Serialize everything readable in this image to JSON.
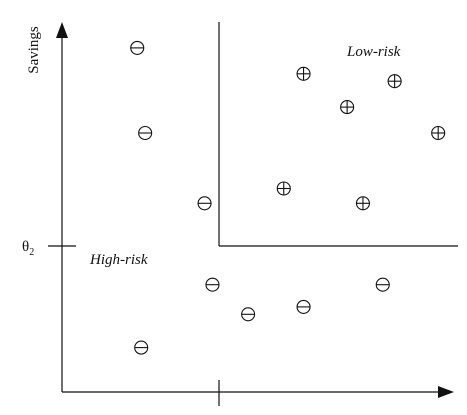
{
  "diagram": {
    "y_axis_label": "Savings",
    "theta_symbol": "θ",
    "theta_subscript": "2",
    "regions": {
      "low_risk": "Low-risk",
      "high_risk": "High-risk"
    },
    "marker_kinds": {
      "minus": "minus-marker",
      "plus": "plus-marker"
    }
  },
  "chart_data": {
    "type": "scatter",
    "title": "",
    "xlabel": "",
    "ylabel": "Savings",
    "thresholds": {
      "y": "θ2"
    },
    "series": [
      {
        "name": "High-risk",
        "symbol": "⊖",
        "points": [
          {
            "x": 0.19,
            "y": 0.93
          },
          {
            "x": 0.21,
            "y": 0.7
          },
          {
            "x": 0.36,
            "y": 0.51
          },
          {
            "x": 0.38,
            "y": 0.29
          },
          {
            "x": 0.47,
            "y": 0.21
          },
          {
            "x": 0.61,
            "y": 0.23
          },
          {
            "x": 0.81,
            "y": 0.29
          },
          {
            "x": 0.2,
            "y": 0.12
          }
        ]
      },
      {
        "name": "Low-risk",
        "symbol": "⊕",
        "points": [
          {
            "x": 0.61,
            "y": 0.86
          },
          {
            "x": 0.72,
            "y": 0.77
          },
          {
            "x": 0.84,
            "y": 0.84
          },
          {
            "x": 0.95,
            "y": 0.7
          },
          {
            "x": 0.56,
            "y": 0.55
          },
          {
            "x": 0.76,
            "y": 0.51
          }
        ]
      }
    ]
  }
}
